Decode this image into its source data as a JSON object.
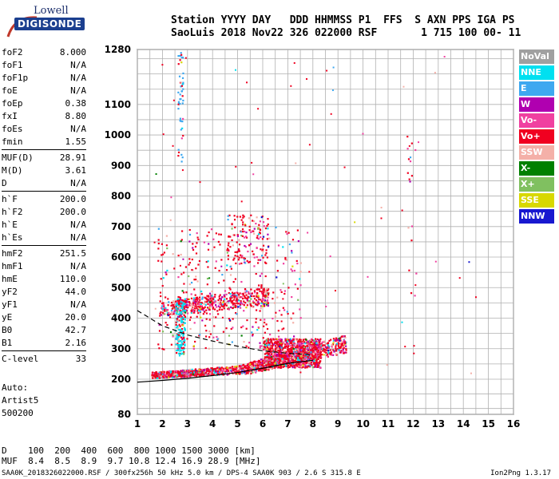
{
  "logo": {
    "top": "Lowell",
    "bottom": "DIGISONDE"
  },
  "header": {
    "line1": "Station YYYY DAY   DDD HHMMSS P1  FFS  S AXN PPS IGA PS",
    "line2": "SaoLuis 2018 Nov22 326 022000 RSF       1 715 100 00- 11"
  },
  "params": [
    [
      {
        "label": "foF2",
        "value": "8.000"
      },
      {
        "label": "foF1",
        "value": "N/A"
      },
      {
        "label": "foF1p",
        "value": "N/A"
      },
      {
        "label": "foE",
        "value": "N/A"
      },
      {
        "label": "foEp",
        "value": "0.38"
      },
      {
        "label": "fxI",
        "value": "8.80"
      },
      {
        "label": "foEs",
        "value": "N/A"
      },
      {
        "label": "fmin",
        "value": "1.55"
      }
    ],
    [
      {
        "label": "MUF(D)",
        "value": "28.91"
      },
      {
        "label": "M(D)",
        "value": "3.61"
      },
      {
        "label": "D",
        "value": "N/A"
      }
    ],
    [
      {
        "label": "h`F",
        "value": "200.0"
      },
      {
        "label": "h`F2",
        "value": "200.0"
      },
      {
        "label": "h`E",
        "value": "N/A"
      },
      {
        "label": "h`Es",
        "value": "N/A"
      }
    ],
    [
      {
        "label": "hmF2",
        "value": "251.5"
      },
      {
        "label": "hmF1",
        "value": "N/A"
      },
      {
        "label": "hmE",
        "value": "110.0"
      },
      {
        "label": "yF2",
        "value": "44.0"
      },
      {
        "label": "yF1",
        "value": "N/A"
      },
      {
        "label": "yE",
        "value": "20.0"
      },
      {
        "label": "B0",
        "value": "42.7"
      },
      {
        "label": "B1",
        "value": "2.16"
      }
    ],
    [
      {
        "label": "C-level",
        "value": "33"
      }
    ]
  ],
  "auto": {
    "l1": "Auto:",
    "l2": "Artist5",
    "l3": "500200"
  },
  "muf_table": {
    "line1": "D    100  200  400  600  800 1000 1500 3000 [km]",
    "line2": "MUF  8.4  8.5  8.9  9.7 10.8 12.4 16.9 28.9 [MHz]"
  },
  "footer": {
    "file": "SAA0K_2018326022000.RSF / 300fx256h 50 kHz 5.0 km / DPS-4 SAA0K 903 / 2.6 S 315.8 E",
    "version": "Ion2Png 1.3.17"
  },
  "legend": [
    {
      "label": "NoVal",
      "color": "#a0a0a0"
    },
    {
      "label": "NNE",
      "color": "#00e0f0"
    },
    {
      "label": "E",
      "color": "#3ea8f0"
    },
    {
      "label": "W",
      "color": "#b000b0"
    },
    {
      "label": "Vo-",
      "color": "#f040a0"
    },
    {
      "label": "Vo+",
      "color": "#f00020"
    },
    {
      "label": "SSW",
      "color": "#f4b0a8"
    },
    {
      "label": "X-",
      "color": "#008000"
    },
    {
      "label": "X+",
      "color": "#80c060"
    },
    {
      "label": "SSE",
      "color": "#d8d800"
    },
    {
      "label": "NNW",
      "color": "#1818d0"
    }
  ],
  "chart_data": {
    "type": "scatter",
    "xlim": [
      1,
      16
    ],
    "x_ticks": [
      "1",
      "2",
      "3",
      "4",
      "5",
      "6",
      "7",
      "8",
      "9",
      "10",
      "11",
      "12",
      "13",
      "14",
      "15",
      "16"
    ],
    "y_ticks": [
      "80",
      "200",
      "300",
      "400",
      "500",
      "600",
      "700",
      "800",
      "900",
      "1000",
      "1100",
      "1280"
    ],
    "y_scale": "piecewise: 80-200 compressed, 200-1280 linear",
    "grid": true,
    "legend_position": "right",
    "series": [
      {
        "name": "Vo+ F-trace",
        "points": [
          [
            1.6,
            210
          ],
          [
            2,
            212
          ],
          [
            2.5,
            213
          ],
          [
            3,
            215
          ],
          [
            3.5,
            216
          ],
          [
            4,
            218
          ],
          [
            4.5,
            220
          ],
          [
            5,
            225
          ],
          [
            5.5,
            232
          ],
          [
            6,
            240
          ],
          [
            6.5,
            250
          ],
          [
            7,
            262
          ],
          [
            7.5,
            275
          ],
          [
            8,
            285
          ],
          [
            8.5,
            290
          ],
          [
            9,
            292
          ],
          [
            9.2,
            290
          ]
        ]
      },
      {
        "name": "Vo+ F multiple",
        "points": [
          [
            1.8,
            420
          ],
          [
            2.2,
            425
          ],
          [
            2.6,
            430
          ],
          [
            3,
            440
          ],
          [
            3.5,
            445
          ],
          [
            4,
            445
          ],
          [
            4.5,
            450
          ],
          [
            5,
            455
          ],
          [
            5.5,
            460
          ],
          [
            6,
            470
          ]
        ]
      },
      {
        "name": "NNE/E oblique",
        "points": [
          [
            2.7,
            300
          ],
          [
            2.8,
            320
          ],
          [
            2.9,
            350
          ],
          [
            3.0,
            380
          ],
          [
            3.1,
            400
          ],
          [
            2.6,
            1280
          ],
          [
            2.7,
            1130
          ],
          [
            2.8,
            1050
          ]
        ]
      }
    ],
    "profile_lines": [
      {
        "name": "dashed",
        "x": [
          1,
          2,
          3,
          4,
          5,
          6,
          7,
          8
        ],
        "y": [
          425,
          375,
          345,
          325,
          308,
          293,
          285,
          280
        ]
      },
      {
        "name": "solid",
        "x": [
          1,
          2,
          3,
          4,
          5,
          6,
          7,
          8
        ],
        "y": [
          190,
          196,
          203,
          212,
          222,
          236,
          252,
          262
        ]
      }
    ]
  }
}
